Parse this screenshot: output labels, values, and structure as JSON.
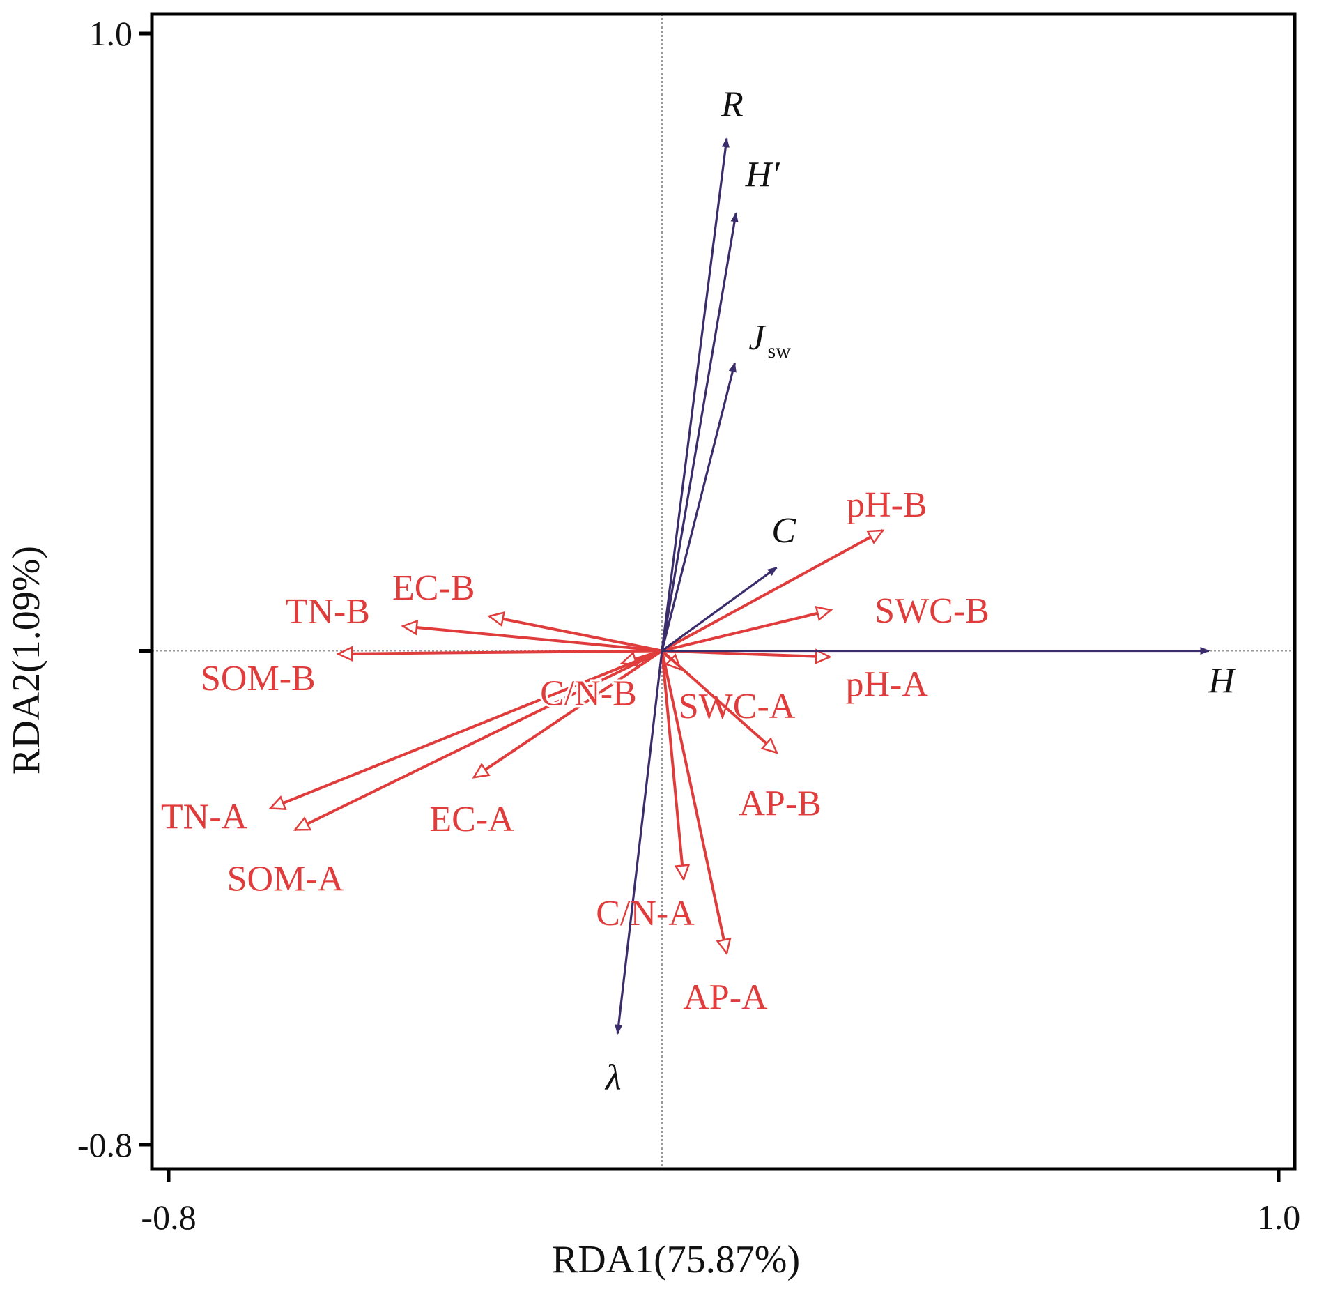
{
  "chart_data": {
    "type": "biplot",
    "xlabel": "RDA1(75.87%)",
    "ylabel": "RDA2(1.09%)",
    "xlim": [
      -0.8,
      1.0
    ],
    "ylim": [
      -0.8,
      1.0
    ],
    "x_tick_labels": [
      "-0.8",
      "1.0"
    ],
    "y_tick_labels": [
      "-0.8",
      "1.0"
    ],
    "reference_lines": {
      "x": 0,
      "y": 0
    },
    "colors": {
      "response": "#3b2d6b",
      "explanatory": "#e03c3c",
      "axis": "#000000",
      "reference": "#999999"
    },
    "response_vectors": [
      {
        "name": "R",
        "sub": "",
        "x": 0.105,
        "y": 0.83
      },
      {
        "name": "H′",
        "sub": "",
        "x": 0.12,
        "y": 0.709
      },
      {
        "name": "J",
        "sub": "sw",
        "x": 0.118,
        "y": 0.466
      },
      {
        "name": "C",
        "sub": "",
        "x": 0.186,
        "y": 0.135
      },
      {
        "name": "H",
        "sub": "",
        "x": 0.887,
        "y": 0.0
      },
      {
        "name": "λ",
        "sub": "",
        "x": -0.072,
        "y": -0.62
      }
    ],
    "explanatory_vectors": [
      {
        "name": "pH-B",
        "x": 0.358,
        "y": 0.195
      },
      {
        "name": "SWC-B",
        "x": 0.274,
        "y": 0.066
      },
      {
        "name": "pH-A",
        "x": 0.272,
        "y": -0.01
      },
      {
        "name": "SWC-A",
        "x": 0.03,
        "y": -0.03
      },
      {
        "name": "AP-B",
        "x": 0.186,
        "y": -0.165
      },
      {
        "name": "AP-A",
        "x": 0.105,
        "y": -0.49
      },
      {
        "name": "C/N-A",
        "x": 0.035,
        "y": -0.37
      },
      {
        "name": "C/N-B",
        "x": -0.065,
        "y": -0.02
      },
      {
        "name": "EC-A",
        "x": -0.305,
        "y": -0.205
      },
      {
        "name": "TN-A",
        "x": -0.635,
        "y": -0.255
      },
      {
        "name": "SOM-A",
        "x": -0.595,
        "y": -0.29
      },
      {
        "name": "SOM-B",
        "x": -0.525,
        "y": -0.005
      },
      {
        "name": "TN-B",
        "x": -0.42,
        "y": 0.04
      },
      {
        "name": "EC-B",
        "x": -0.28,
        "y": 0.056
      }
    ]
  }
}
